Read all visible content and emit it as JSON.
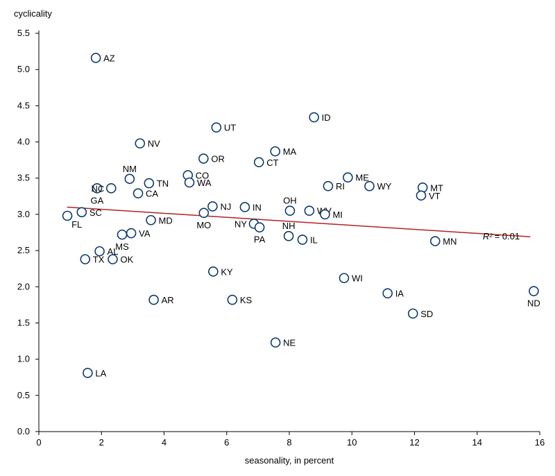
{
  "chart_data": {
    "type": "scatter",
    "ylabel": "cyclicality",
    "xlabel": "seasonality, in percent",
    "xlim": [
      0,
      16
    ],
    "ylim": [
      0.0,
      5.5
    ],
    "x_ticks": [
      "0",
      "2",
      "4",
      "6",
      "8",
      "10",
      "12",
      "14",
      "16"
    ],
    "y_ticks": [
      "0.0",
      "0.5",
      "1.0",
      "1.5",
      "2.0",
      "2.5",
      "3.0",
      "3.5",
      "4.0",
      "4.5",
      "5.0",
      "5.5"
    ],
    "annotation": {
      "r2_label": "R²",
      "r2_value": "= 0.01"
    },
    "trendline": {
      "x": [
        0.9,
        15.7
      ],
      "y": [
        3.1,
        2.69
      ]
    },
    "point_color": "#0b3a6e",
    "trend_color": "#b22222",
    "points": [
      {
        "label": "AZ",
        "x": 1.82,
        "y": 5.16,
        "pos": "right"
      },
      {
        "label": "ID",
        "x": 8.79,
        "y": 4.34,
        "pos": "right"
      },
      {
        "label": "UT",
        "x": 5.67,
        "y": 4.2,
        "pos": "right"
      },
      {
        "label": "NV",
        "x": 3.23,
        "y": 3.98,
        "pos": "right"
      },
      {
        "label": "MA",
        "x": 7.55,
        "y": 3.87,
        "pos": "right"
      },
      {
        "label": "OR",
        "x": 5.26,
        "y": 3.77,
        "pos": "right"
      },
      {
        "label": "CT",
        "x": 7.03,
        "y": 3.72,
        "pos": "right"
      },
      {
        "label": "NM",
        "x": 2.9,
        "y": 3.49,
        "pos": "top"
      },
      {
        "label": "CO",
        "x": 4.76,
        "y": 3.54,
        "pos": "right"
      },
      {
        "label": "ME",
        "x": 9.87,
        "y": 3.51,
        "pos": "right"
      },
      {
        "label": "TN",
        "x": 3.52,
        "y": 3.43,
        "pos": "right"
      },
      {
        "label": "WA",
        "x": 4.81,
        "y": 3.44,
        "pos": "right"
      },
      {
        "label": "RI",
        "x": 9.24,
        "y": 3.39,
        "pos": "right"
      },
      {
        "label": "WY",
        "x": 10.56,
        "y": 3.39,
        "pos": "right"
      },
      {
        "label": "MT",
        "x": 12.26,
        "y": 3.37,
        "pos": "right"
      },
      {
        "label": "GA",
        "x": 1.86,
        "y": 3.36,
        "pos": "bottom"
      },
      {
        "label": "NC",
        "x": 2.31,
        "y": 3.36,
        "pos": "left"
      },
      {
        "label": "CA",
        "x": 3.17,
        "y": 3.29,
        "pos": "right"
      },
      {
        "label": "VT",
        "x": 12.21,
        "y": 3.26,
        "pos": "right"
      },
      {
        "label": "NJ",
        "x": 5.55,
        "y": 3.11,
        "pos": "right"
      },
      {
        "label": "IN",
        "x": 6.58,
        "y": 3.1,
        "pos": "right"
      },
      {
        "label": "OH",
        "x": 8.02,
        "y": 3.05,
        "pos": "top"
      },
      {
        "label": "WV",
        "x": 8.64,
        "y": 3.05,
        "pos": "right"
      },
      {
        "label": "MI",
        "x": 9.14,
        "y": 3.0,
        "pos": "right"
      },
      {
        "label": "SC",
        "x": 1.37,
        "y": 3.03,
        "pos": "right"
      },
      {
        "label": "FL",
        "x": 0.91,
        "y": 2.98,
        "pos": "bottom-right"
      },
      {
        "label": "MO",
        "x": 5.27,
        "y": 3.02,
        "pos": "bottom"
      },
      {
        "label": "MD",
        "x": 3.58,
        "y": 2.92,
        "pos": "right"
      },
      {
        "label": "NY",
        "x": 6.87,
        "y": 2.87,
        "pos": "left"
      },
      {
        "label": "PA",
        "x": 7.05,
        "y": 2.82,
        "pos": "bottom"
      },
      {
        "label": "VA",
        "x": 2.95,
        "y": 2.74,
        "pos": "right"
      },
      {
        "label": "MS",
        "x": 2.66,
        "y": 2.72,
        "pos": "bottom"
      },
      {
        "label": "NH",
        "x": 7.98,
        "y": 2.7,
        "pos": "top"
      },
      {
        "label": "IL",
        "x": 8.42,
        "y": 2.65,
        "pos": "right"
      },
      {
        "label": "MN",
        "x": 12.66,
        "y": 2.63,
        "pos": "right"
      },
      {
        "label": "AL",
        "x": 1.94,
        "y": 2.49,
        "pos": "right"
      },
      {
        "label": "TX",
        "x": 1.48,
        "y": 2.38,
        "pos": "right"
      },
      {
        "label": "OK",
        "x": 2.36,
        "y": 2.38,
        "pos": "right"
      },
      {
        "label": "KY",
        "x": 5.57,
        "y": 2.21,
        "pos": "right"
      },
      {
        "label": "WI",
        "x": 9.75,
        "y": 2.12,
        "pos": "right"
      },
      {
        "label": "ND",
        "x": 15.81,
        "y": 1.94,
        "pos": "bottom"
      },
      {
        "label": "IA",
        "x": 11.14,
        "y": 1.91,
        "pos": "right"
      },
      {
        "label": "AR",
        "x": 3.67,
        "y": 1.82,
        "pos": "right"
      },
      {
        "label": "KS",
        "x": 6.18,
        "y": 1.82,
        "pos": "right"
      },
      {
        "label": "SD",
        "x": 11.95,
        "y": 1.63,
        "pos": "right"
      },
      {
        "label": "NE",
        "x": 7.56,
        "y": 1.23,
        "pos": "right"
      },
      {
        "label": "LA",
        "x": 1.56,
        "y": 0.81,
        "pos": "right"
      }
    ]
  }
}
